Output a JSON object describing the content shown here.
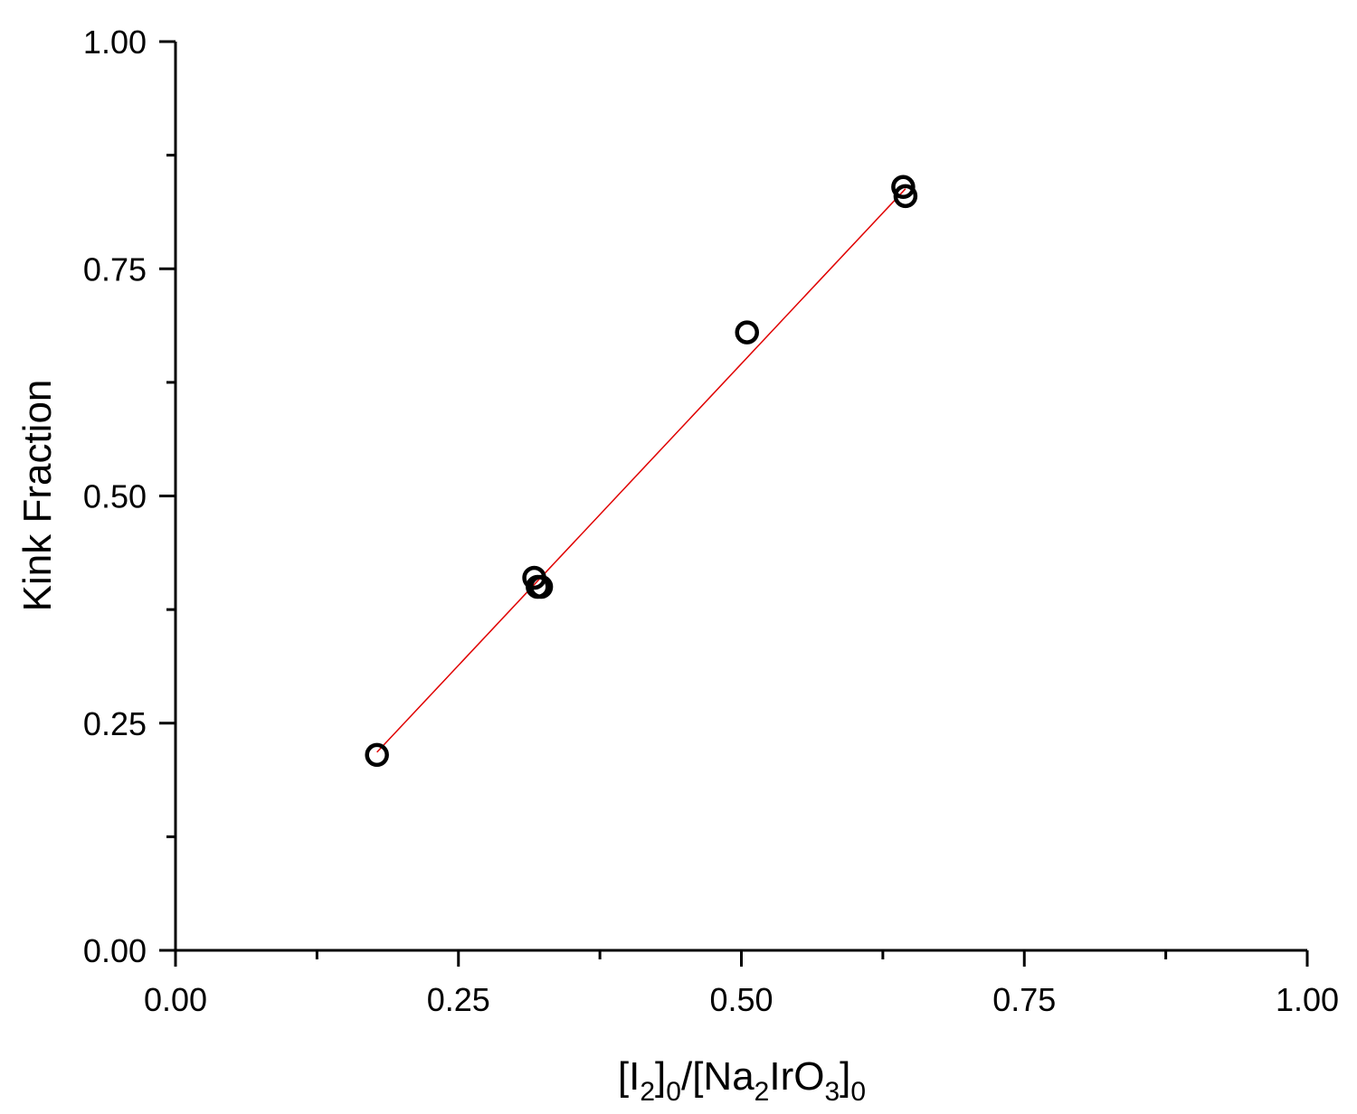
{
  "chart_data": {
    "type": "scatter",
    "title": "",
    "xlabel": {
      "parts": [
        {
          "text": "[I",
          "sub": false
        },
        {
          "text": "2",
          "sub": true
        },
        {
          "text": "]",
          "sub": false
        },
        {
          "text": "0",
          "sub": true
        },
        {
          "text": "/[Na",
          "sub": false
        },
        {
          "text": "2",
          "sub": true
        },
        {
          "text": "IrO",
          "sub": false
        },
        {
          "text": "3",
          "sub": true
        },
        {
          "text": "]",
          "sub": false
        },
        {
          "text": "0",
          "sub": true
        }
      ]
    },
    "ylabel": "Kink Fraction",
    "xlim": [
      0,
      1
    ],
    "ylim": [
      0,
      1
    ],
    "x_ticks": [
      0,
      0.25,
      0.5,
      0.75,
      1
    ],
    "x_tick_labels": [
      "0.00",
      "0.25",
      "0.50",
      "0.75",
      "1.00"
    ],
    "x_minor_ticks": [
      0.125,
      0.375,
      0.625,
      0.875
    ],
    "y_ticks": [
      0,
      0.25,
      0.5,
      0.75,
      1
    ],
    "y_tick_labels": [
      "0.00",
      "0.25",
      "0.50",
      "0.75",
      "1.00"
    ],
    "y_minor_ticks": [
      0.125,
      0.375,
      0.625,
      0.875
    ],
    "grid": false,
    "points": [
      {
        "x": 0.178,
        "y": 0.215
      },
      {
        "x": 0.317,
        "y": 0.41
      },
      {
        "x": 0.32,
        "y": 0.4
      },
      {
        "x": 0.323,
        "y": 0.4
      },
      {
        "x": 0.505,
        "y": 0.68
      },
      {
        "x": 0.643,
        "y": 0.84
      },
      {
        "x": 0.645,
        "y": 0.83
      }
    ],
    "fit_line": {
      "x": [
        0.178,
        0.645
      ],
      "y": [
        0.218,
        0.838
      ]
    },
    "colors": {
      "points": "#000000",
      "fit_line": "#e00000",
      "axes": "#000000"
    }
  }
}
